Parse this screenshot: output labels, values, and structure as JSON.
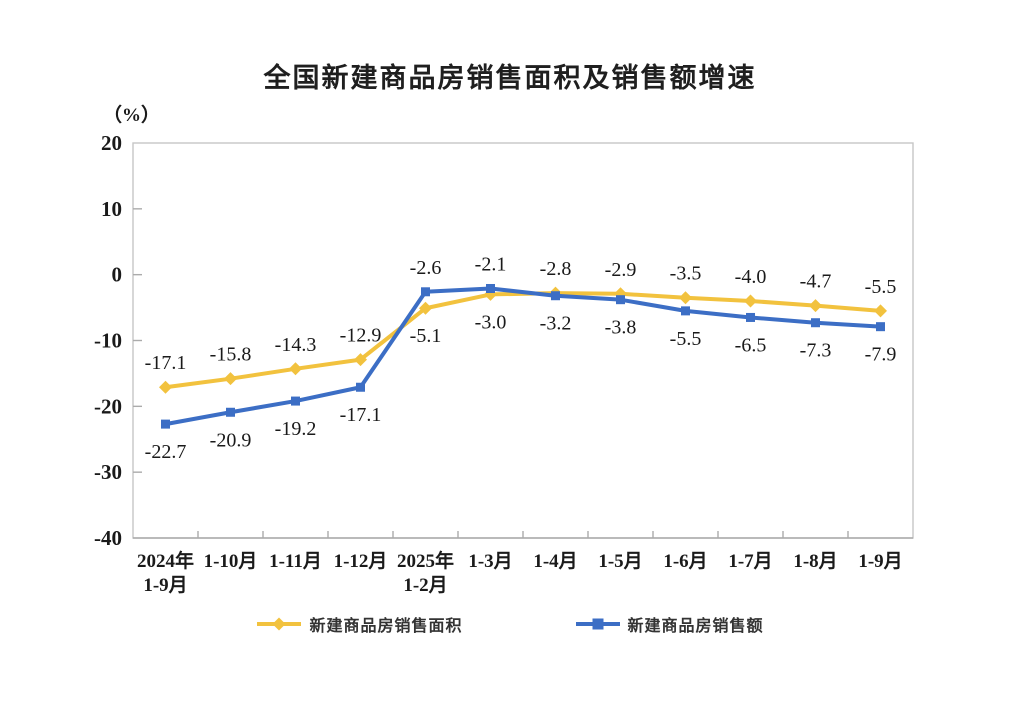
{
  "chart_data": {
    "type": "line",
    "title": "全国新建商品房销售面积及销售额增速",
    "ylabel": "（%）",
    "xlabel": "",
    "ylim": [
      -40,
      20
    ],
    "y_ticks": [
      20,
      10,
      0,
      -10,
      -20,
      -30,
      -40
    ],
    "grid": false,
    "legend_position": "bottom",
    "categories": [
      "2024年\n1-9月",
      "1-10月",
      "1-11月",
      "1-12月",
      "2025年\n1-2月",
      "1-3月",
      "1-4月",
      "1-5月",
      "1-6月",
      "1-7月",
      "1-8月",
      "1-9月"
    ],
    "series": [
      {
        "key": "sales_area",
        "name": "新建商品房销售面积",
        "marker": "diamond",
        "color": "#F2C23E",
        "values": [
          -17.1,
          -15.8,
          -14.3,
          -12.9,
          -5.1,
          -3.0,
          -2.8,
          -2.9,
          -3.5,
          -4.0,
          -4.7,
          -5.5
        ]
      },
      {
        "key": "sales_amount",
        "name": "新建商品房销售额",
        "marker": "square",
        "color": "#3C6EC5",
        "values": [
          -22.7,
          -20.9,
          -19.2,
          -17.1,
          -2.6,
          -2.1,
          -3.2,
          -3.8,
          -5.5,
          -6.5,
          -7.3,
          -7.9
        ]
      }
    ],
    "axis_color": "#C6C6C6",
    "text_color": "#1a1a1a"
  }
}
